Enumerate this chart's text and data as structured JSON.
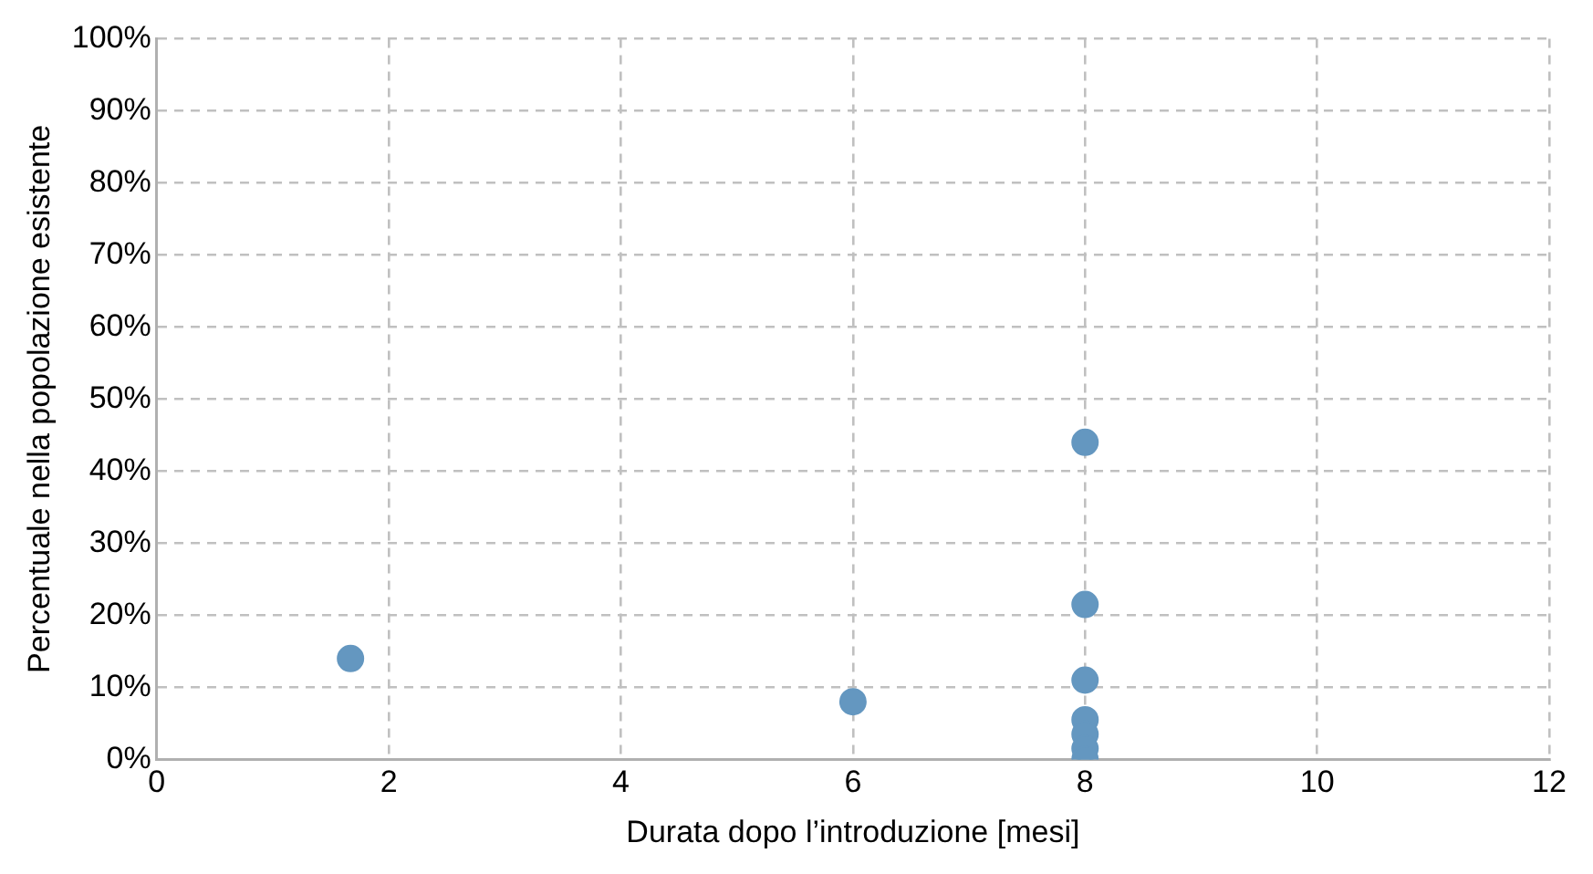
{
  "chart_data": {
    "type": "scatter",
    "xlabel": "Durata dopo l’introduzione [mesi]",
    "ylabel": "Percentuale nella popolazione esistente",
    "x": [
      1.67,
      6,
      8,
      8,
      8,
      8,
      8,
      8,
      8
    ],
    "values": [
      14,
      8,
      44,
      21.5,
      11,
      5.5,
      3.5,
      1.5,
      0
    ],
    "color": "#6497c0",
    "marker": "circle",
    "grid": true,
    "legend": false,
    "xlim": [
      0,
      12
    ],
    "xticks": [
      0,
      2,
      4,
      6,
      8,
      10,
      12
    ],
    "ylim": [
      0,
      100
    ],
    "yticks": [
      {
        "value": 0,
        "label": "0%"
      },
      {
        "value": 10,
        "label": "10%"
      },
      {
        "value": 20,
        "label": "20%"
      },
      {
        "value": 30,
        "label": "30%"
      },
      {
        "value": 40,
        "label": "40%"
      },
      {
        "value": 50,
        "label": "50%"
      },
      {
        "value": 60,
        "label": "60%"
      },
      {
        "value": 70,
        "label": "70%"
      },
      {
        "value": 80,
        "label": "80%"
      },
      {
        "value": 90,
        "label": "90%"
      },
      {
        "value": 100,
        "label": "100%"
      }
    ]
  }
}
